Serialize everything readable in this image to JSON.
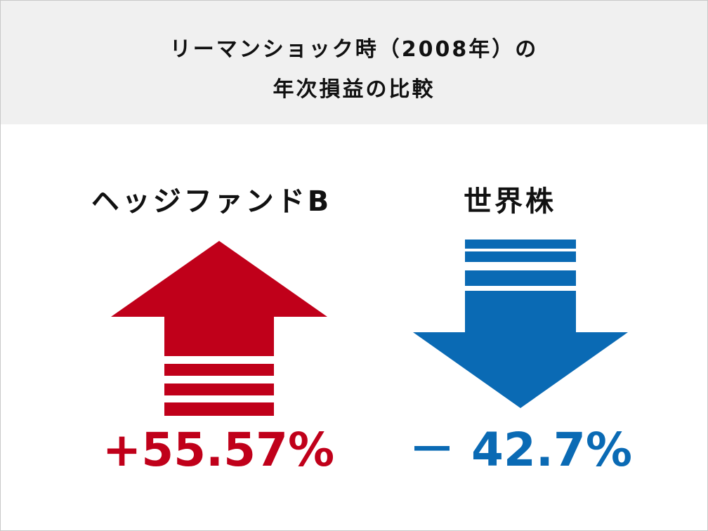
{
  "header": {
    "title_line1": "リーマンショック時（2008年）の",
    "title_line2": "年次損益の比較"
  },
  "colors": {
    "header_bg": "#f0f0f0",
    "gain": "#c0001a",
    "loss": "#0a6ab4"
  },
  "chart_data": {
    "type": "bar",
    "categories": [
      "ヘッジファンドB",
      "世界株"
    ],
    "values": [
      55.57,
      -42.7
    ],
    "value_labels": [
      "+55.57%",
      "－ 42.7%"
    ],
    "units": "%",
    "title": "リーマンショック時（2008年）の年次損益の比較",
    "xlabel": "",
    "ylabel": ""
  }
}
